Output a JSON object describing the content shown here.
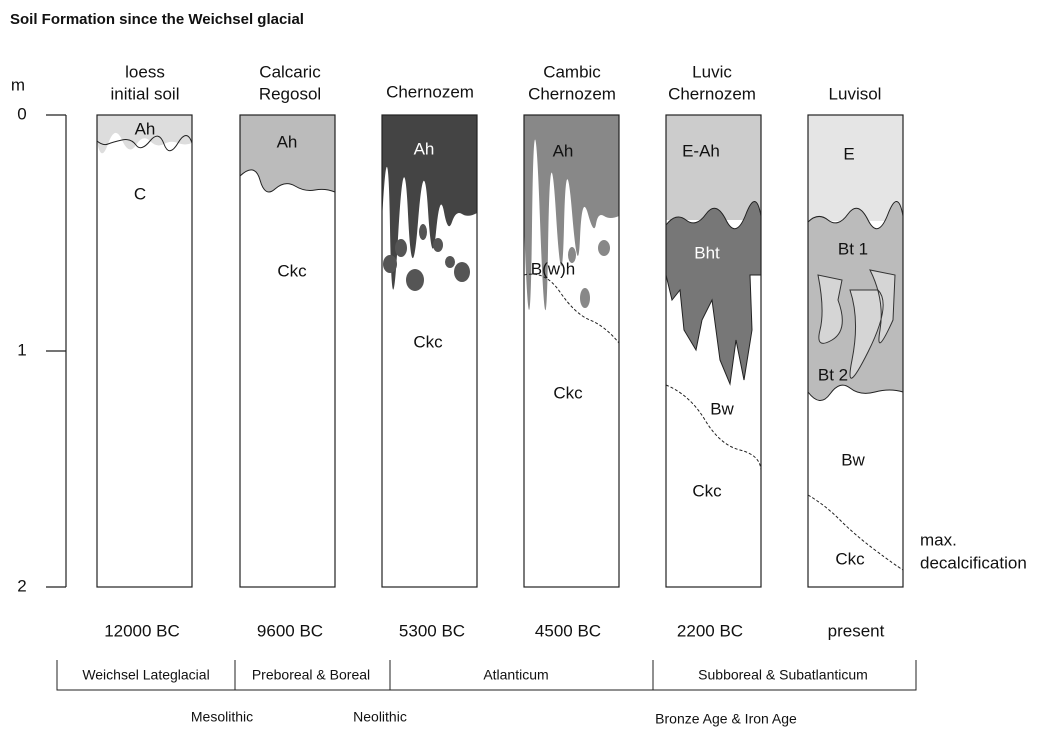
{
  "title": "Soil Formation since the Weichsel glacial",
  "depth_axis": {
    "unit": "m",
    "ticks": [
      "0",
      "1",
      "2"
    ]
  },
  "columns": [
    {
      "name": [
        "loess",
        "initial soil"
      ],
      "horizons": [
        "Ah",
        "C"
      ],
      "date": "12000 BC"
    },
    {
      "name": [
        "Calcaric",
        "Regosol"
      ],
      "horizons": [
        "Ah",
        "Ckc"
      ],
      "date": "9600 BC"
    },
    {
      "name": [
        "Chernozem"
      ],
      "horizons": [
        "Ah",
        "Ckc"
      ],
      "date": "5300 BC"
    },
    {
      "name": [
        "Cambic",
        "Chernozem"
      ],
      "horizons": [
        "Ah",
        "B(w)h",
        "Ckc"
      ],
      "date": "4500 BC"
    },
    {
      "name": [
        "Luvic",
        "Chernozem"
      ],
      "horizons": [
        "E-Ah",
        "Bht",
        "Bw",
        "Ckc"
      ],
      "date": "2200 BC"
    },
    {
      "name": [
        "Luvisol"
      ],
      "horizons": [
        "E",
        "Bt 1",
        "Bt 2",
        "Bw",
        "Ckc"
      ],
      "date": "present"
    }
  ],
  "annotation": [
    "max.",
    "decalcification"
  ],
  "periods": [
    "Weichsel Lateglacial",
    "Preboreal & Boreal",
    "Atlanticum",
    "Subboreal & Subatlanticum"
  ],
  "cultures": [
    "Mesolithic",
    "Neolithic",
    "Bronze Age & Iron Age"
  ]
}
